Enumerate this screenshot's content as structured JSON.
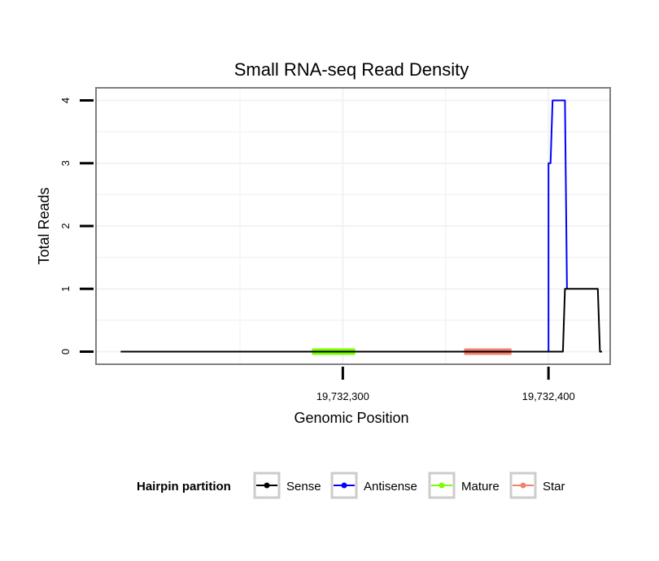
{
  "chart_data": {
    "type": "line",
    "title": "Small RNA-seq Read Density",
    "xlabel": "Genomic Position",
    "ylabel": "Total Reads",
    "xlim": [
      19732180,
      19732430
    ],
    "ylim": [
      -0.2,
      4.2
    ],
    "x_ticks": [
      19732300,
      19732400
    ],
    "x_tick_labels": [
      "19,732,300",
      "19,732,400"
    ],
    "y_ticks": [
      0,
      1,
      2,
      3,
      4
    ],
    "y_tick_labels": [
      "0",
      "1",
      "2",
      "3",
      "4"
    ],
    "grid": true,
    "legend": {
      "title": "Hairpin partition",
      "position": "bottom",
      "entries": [
        {
          "label": "Sense",
          "color": "#000000"
        },
        {
          "label": "Antisense",
          "color": "#0000ff"
        },
        {
          "label": "Mature",
          "color": "#7cfc00"
        },
        {
          "label": "Star",
          "color": "#f08070"
        }
      ]
    },
    "series": [
      {
        "name": "Sense",
        "color": "#000000",
        "x": [
          19732192,
          19732407,
          19732408,
          19732424,
          19732425,
          19732426
        ],
        "y": [
          0,
          0,
          1,
          1,
          0,
          0
        ]
      },
      {
        "name": "Antisense",
        "color": "#0000ff",
        "x": [
          19732400,
          19732400,
          19732401,
          19732402,
          19732403,
          19732408,
          19732409
        ],
        "y": [
          0,
          3,
          3,
          4,
          4,
          4,
          1
        ]
      }
    ],
    "segments": [
      {
        "name": "Mature",
        "color": "#7cfc00",
        "x_start": 19732285,
        "x_end": 19732306,
        "y": 0
      },
      {
        "name": "Star",
        "color": "#f08070",
        "x_start": 19732359,
        "x_end": 19732382,
        "y": 0
      }
    ]
  }
}
